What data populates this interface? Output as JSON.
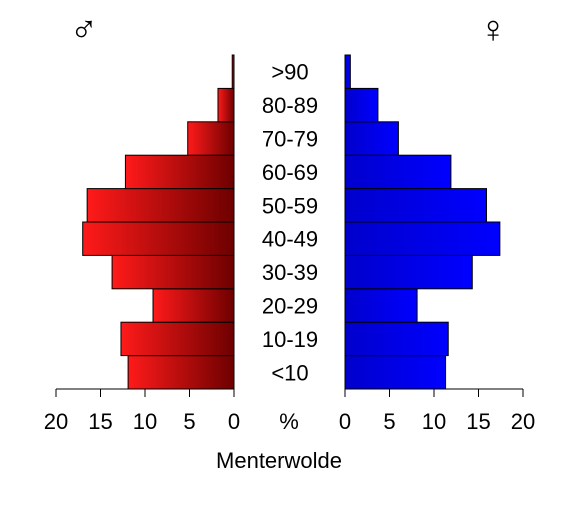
{
  "chart_data": {
    "type": "bar",
    "title": "Menterwolde",
    "unit_label": "%",
    "symbols": {
      "male": "♂",
      "female": "♀"
    },
    "categories": [
      "<10",
      "10-19",
      "20-29",
      "30-39",
      "40-49",
      "50-59",
      "60-69",
      "70-79",
      "80-89",
      ">90"
    ],
    "series": [
      {
        "name": "♂",
        "side": "left",
        "values": [
          11.9,
          12.7,
          9.1,
          13.7,
          17.0,
          16.5,
          12.2,
          5.2,
          1.8,
          0.2
        ]
      },
      {
        "name": "♀",
        "side": "right",
        "values": [
          11.3,
          11.6,
          8.1,
          14.3,
          17.4,
          15.9,
          11.9,
          6.0,
          3.7,
          0.6
        ]
      }
    ],
    "xlim": [
      0,
      20
    ],
    "xticks": [
      20,
      15,
      10,
      5,
      0
    ],
    "xticks_right": [
      0,
      5,
      10,
      15,
      20
    ],
    "colors": {
      "male_light": "#ff1a1a",
      "male_dark": "#6e0000",
      "female_light": "#0000cc",
      "female_dark": "#0000ff"
    }
  }
}
